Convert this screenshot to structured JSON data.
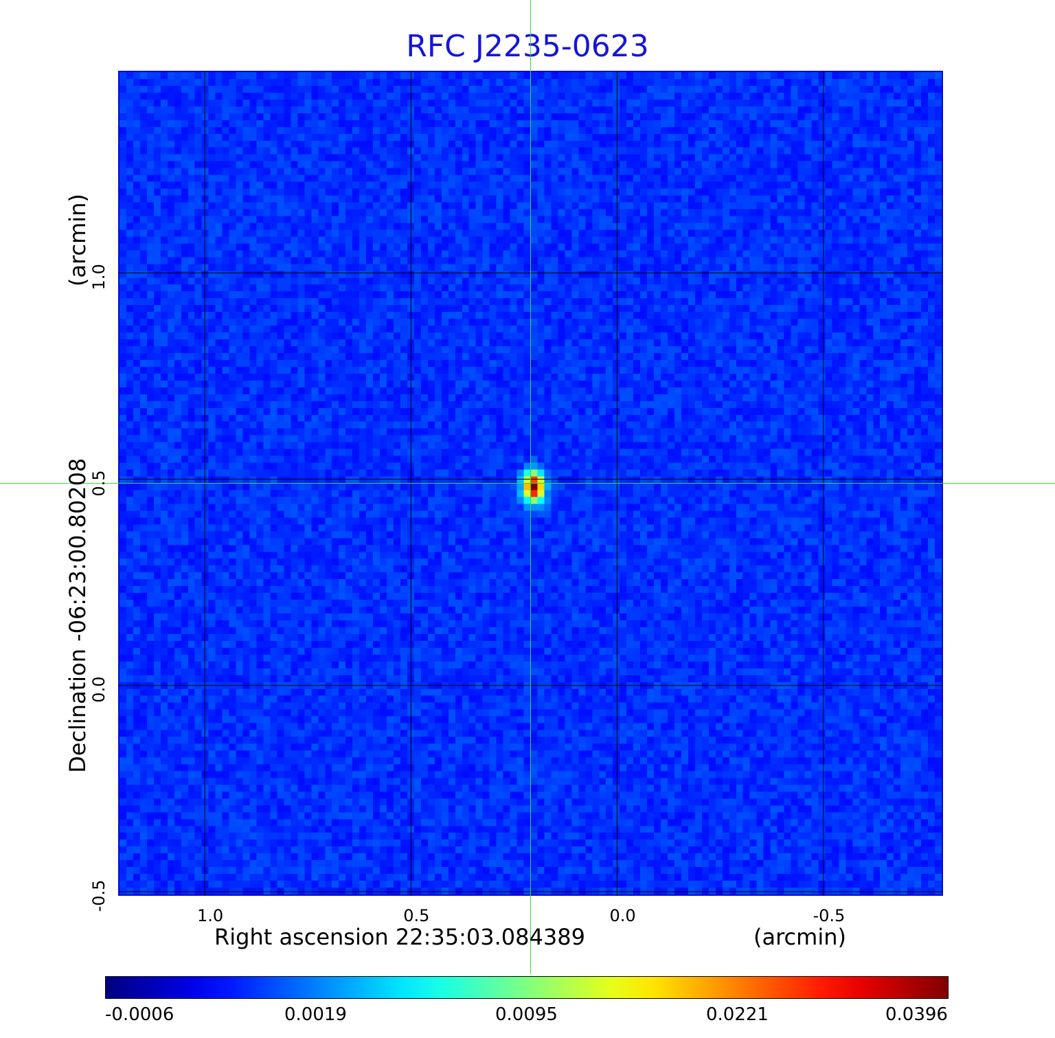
{
  "chart_data": {
    "type": "heatmap",
    "title": "RFC J2235-0623",
    "xlabel": "Right ascension  22:35:03.084389",
    "xunit": "(arcmin)",
    "ylabel": "Declination  -06:23:00.80208",
    "yunit": "(arcmin)",
    "xlim": [
      1.21,
      -0.79
    ],
    "ylim": [
      -0.51,
      1.49
    ],
    "xticks": [
      1.0,
      0.5,
      0.0,
      -0.5
    ],
    "xtick_labels": [
      "1.0",
      "0.5",
      "0.0",
      "-0.5"
    ],
    "yticks": [
      -0.5,
      0.0,
      0.5,
      1.0
    ],
    "ytick_labels": [
      "-0.5",
      "0.0",
      "0.5",
      "1.0"
    ],
    "grid": true,
    "colormap": "jet",
    "peak": {
      "x": 0.21,
      "y": 0.49,
      "value": 0.0396
    },
    "crosshair": {
      "x": 0.21,
      "y": 0.49,
      "color": "#33dd33"
    },
    "colorbar": {
      "ticks": [
        "-0.0006",
        "0.0019",
        "0.0095",
        "0.0221",
        "0.0396"
      ],
      "min": -0.0006,
      "max": 0.0396
    }
  }
}
